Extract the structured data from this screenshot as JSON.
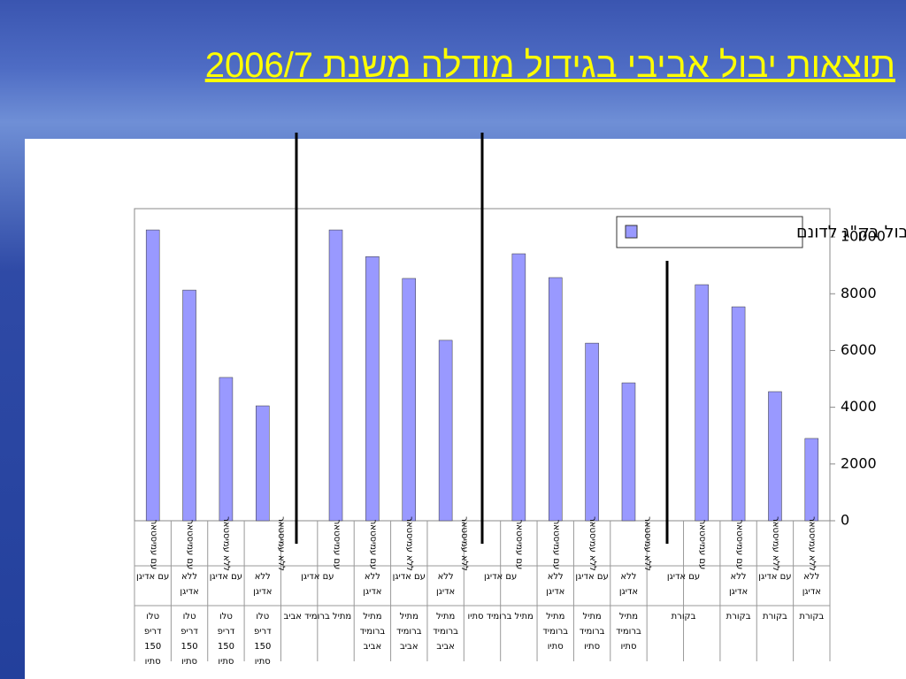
{
  "slide_title": "תוצאות יבול אביבי בגידול מודלה משנת 2006/7",
  "chart_data": {
    "type": "bar",
    "series": [
      {
        "name": "יבול בק\"ג לדונם",
        "color": "#9999ff",
        "values": [
          10250,
          8130,
          5050,
          4050,
          null,
          10250,
          9310,
          8540,
          6360,
          null,
          9410,
          8570,
          6260,
          4860,
          null,
          8320,
          7540,
          4550,
          2900
        ]
      }
    ],
    "category_levels": [
      [
        "עם עמיסטאר",
        "עם עמיסטאר",
        "ללא עמיסטאר",
        "ללא עמיסטאר",
        null,
        "עם עמיסטאר",
        "עם עמיסטאר",
        "ללא עמיסטאר",
        "ללא עמיסטאר",
        null,
        "עם עמיסטאר",
        "עם עמיסטאר",
        "ללא עמיסטאר",
        "ללא עמיסטאר",
        null,
        "עם עמיסטאר",
        "עם עמיסטאר",
        "ללא עמיסטאר",
        "ללא עמיסטאר"
      ],
      [
        "עם אדיגן",
        "ללא אדיגן",
        "עם אדיגן",
        "ללא אדיגן",
        "עם אדיגן",
        null,
        "ללא אדיגן",
        "עם אדיגן",
        "ללא אדיגן",
        "עם אדיגן",
        null,
        "ללא אדיגן",
        "עם אדיגן",
        "ללא אדיגן",
        "עם אדיגן",
        null,
        "ללא אדיגן",
        "עם אדיגן",
        "ללא אדיגן"
      ],
      [
        "טלו דריפ 150 סתיו",
        "טלו דריפ 150 סתיו",
        "טלו דריפ 150 סתיו",
        "טלו דריפ 150 סתיו",
        "מתיל ברומיד אביב",
        null,
        "מתיל ברומיד אביב",
        "מתיל ברומיד אביב",
        "מתיל ברומיד אביב",
        "מתיל ברומיד סתיו",
        null,
        "מתיל ברומיד סתיו",
        "מתיל ברומיד סתיו",
        "מתיל ברומיד סתיו",
        "בקורת",
        null,
        "בקורת",
        "בקורת",
        "בקורת"
      ]
    ],
    "ylim": [
      0,
      11000
    ],
    "yticks": [
      0,
      2000,
      4000,
      6000,
      8000,
      10000
    ],
    "y_axis_side": "right",
    "legend": "top-right"
  }
}
